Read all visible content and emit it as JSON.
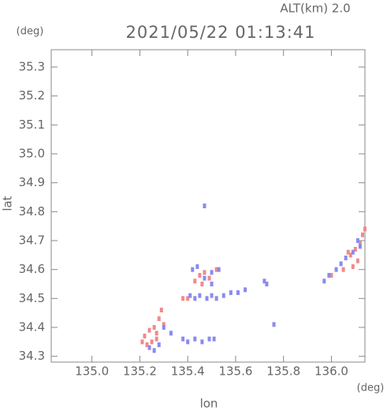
{
  "chart_data": {
    "type": "scatter",
    "title": "2021/05/22 01:13:41",
    "subtitle": "ALT(km) 2.0",
    "y_unit": "(deg)",
    "x_unit": "(deg)",
    "y_label": "lat",
    "x_label": "lon",
    "xlim": [
      134.83,
      136.14
    ],
    "ylim": [
      34.28,
      35.36
    ],
    "xticks": [
      {
        "value": 135,
        "label": "135.0"
      },
      135.2,
      135.4,
      135.6,
      135.8,
      {
        "value": 136,
        "label": "136.0"
      }
    ],
    "yticks": [
      34.3,
      34.4,
      34.5,
      34.6,
      34.7,
      34.8,
      34.9,
      {
        "value": 35,
        "label": "35.0"
      },
      35.1,
      35.2,
      35.3
    ],
    "series": [
      {
        "color": "#f08a8a",
        "x": [
          135.22,
          135.24,
          135.26,
          135.28,
          135.29,
          135.25,
          135.27,
          135.23,
          135.21,
          135.45,
          135.47,
          135.49,
          135.43,
          135.38,
          135.4,
          135.52,
          135.46,
          136.08,
          136.1,
          136.12,
          136.13,
          136.11,
          136.09,
          136.05,
          136.0,
          136.14,
          136.07,
          135.3,
          135.27
        ],
        "values": [
          34.37,
          34.39,
          34.4,
          34.43,
          34.46,
          34.35,
          34.36,
          34.34,
          34.35,
          34.58,
          34.59,
          34.57,
          34.56,
          34.5,
          34.5,
          34.6,
          34.55,
          34.65,
          34.67,
          34.69,
          34.72,
          34.63,
          34.61,
          34.6,
          34.58,
          34.74,
          34.66,
          34.41,
          34.38
        ]
      },
      {
        "color": "#8a8af0",
        "x": [
          135.24,
          135.26,
          135.28,
          135.3,
          135.33,
          135.41,
          135.43,
          135.45,
          135.48,
          135.5,
          135.52,
          135.55,
          135.58,
          135.61,
          135.64,
          135.42,
          135.44,
          135.47,
          135.5,
          135.53,
          135.38,
          135.4,
          135.43,
          135.46,
          135.49,
          135.51,
          135.47,
          135.72,
          135.73,
          135.76,
          136.02,
          136.04,
          136.06,
          136.09,
          136.11,
          135.99,
          135.97,
          136.12,
          135.5
        ],
        "values": [
          34.33,
          34.32,
          34.34,
          34.4,
          34.38,
          34.51,
          34.5,
          34.51,
          34.5,
          34.51,
          34.5,
          34.51,
          34.52,
          34.52,
          34.53,
          34.6,
          34.61,
          34.57,
          34.59,
          34.6,
          34.36,
          34.35,
          34.36,
          34.35,
          34.36,
          34.36,
          34.82,
          34.56,
          34.55,
          34.41,
          34.6,
          34.62,
          34.64,
          34.66,
          34.7,
          34.58,
          34.56,
          34.68,
          34.55
        ]
      }
    ]
  }
}
